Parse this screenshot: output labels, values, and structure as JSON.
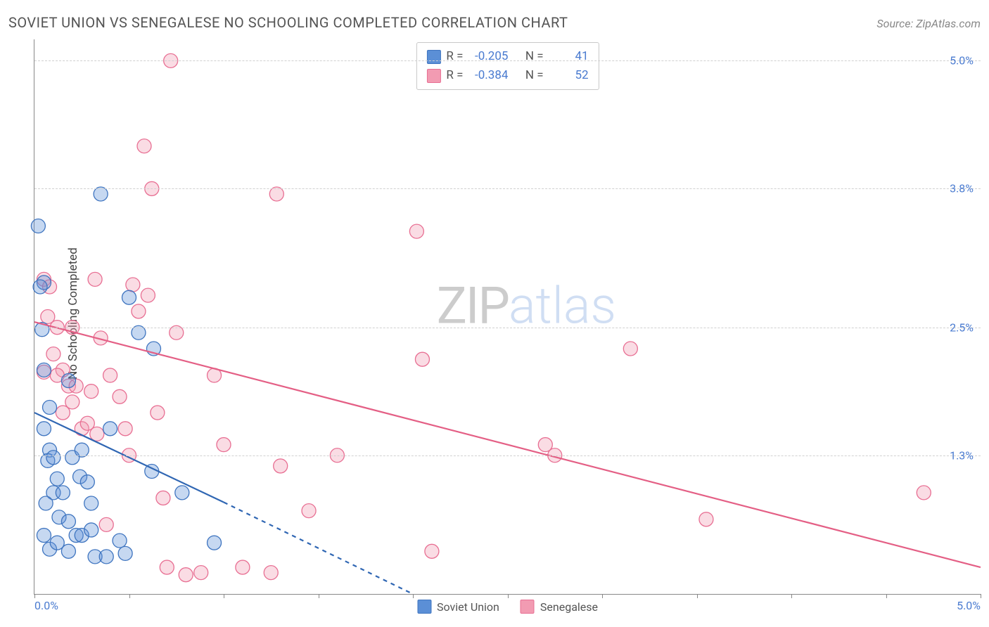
{
  "header": {
    "title": "SOVIET UNION VS SENEGALESE NO SCHOOLING COMPLETED CORRELATION CHART",
    "source": "Source: ZipAtlas.com"
  },
  "watermark": {
    "part1": "ZIP",
    "part2": "atlas"
  },
  "chart": {
    "type": "scatter",
    "y_label": "No Schooling Completed",
    "background_color": "#ffffff",
    "grid_color": "#d0d0d0",
    "axis_color": "#888888",
    "tick_label_color": "#4a7bd0",
    "xlim": [
      0.0,
      5.0
    ],
    "ylim": [
      0.0,
      5.2
    ],
    "x_ticks": [
      0.0,
      0.5,
      1.0,
      1.5,
      2.0,
      2.5,
      3.0,
      3.5,
      4.0,
      4.5,
      5.0
    ],
    "x_axis_labels": {
      "min": "0.0%",
      "max": "5.0%"
    },
    "y_ticks": [
      {
        "v": 1.3,
        "label": "1.3%"
      },
      {
        "v": 2.5,
        "label": "2.5%"
      },
      {
        "v": 3.8,
        "label": "3.8%"
      },
      {
        "v": 5.0,
        "label": "5.0%"
      }
    ],
    "point_radius": 10,
    "point_fill_opacity": 0.35,
    "point_stroke_width": 1.3,
    "trend_line_width": 2.2,
    "series": [
      {
        "name": "Soviet Union",
        "color": "#5b8fd6",
        "stroke": "#3f75c0",
        "trend_color": "#2f66b3",
        "R": "-0.205",
        "N": "41",
        "trend": {
          "x1": 0.0,
          "y1": 1.7,
          "x2": 1.0,
          "y2": 0.86
        },
        "trend_ext": {
          "x1": 1.0,
          "y1": 0.86,
          "x2": 2.0,
          "y2": 0.0
        },
        "points": [
          [
            0.02,
            3.45
          ],
          [
            0.05,
            2.92
          ],
          [
            0.03,
            2.88
          ],
          [
            0.04,
            2.48
          ],
          [
            0.05,
            2.1
          ],
          [
            0.08,
            1.35
          ],
          [
            0.07,
            1.25
          ],
          [
            0.1,
            1.28
          ],
          [
            0.12,
            1.08
          ],
          [
            0.1,
            0.95
          ],
          [
            0.06,
            0.85
          ],
          [
            0.15,
            0.95
          ],
          [
            0.13,
            0.72
          ],
          [
            0.18,
            0.68
          ],
          [
            0.22,
            0.55
          ],
          [
            0.05,
            0.55
          ],
          [
            0.08,
            0.42
          ],
          [
            0.12,
            0.48
          ],
          [
            0.18,
            0.4
          ],
          [
            0.25,
            0.55
          ],
          [
            0.3,
            0.6
          ],
          [
            0.24,
            1.1
          ],
          [
            0.2,
            1.28
          ],
          [
            0.28,
            1.05
          ],
          [
            0.25,
            1.35
          ],
          [
            0.32,
            0.35
          ],
          [
            0.38,
            0.35
          ],
          [
            0.4,
            1.55
          ],
          [
            0.45,
            0.5
          ],
          [
            0.48,
            0.38
          ],
          [
            0.5,
            2.78
          ],
          [
            0.55,
            2.45
          ],
          [
            0.63,
            2.3
          ],
          [
            0.62,
            1.15
          ],
          [
            0.95,
            0.48
          ],
          [
            0.35,
            3.75
          ],
          [
            0.18,
            2.0
          ],
          [
            0.08,
            1.75
          ],
          [
            0.05,
            1.55
          ],
          [
            0.3,
            0.85
          ],
          [
            0.78,
            0.95
          ]
        ]
      },
      {
        "name": "Senegalese",
        "color": "#f29bb2",
        "stroke": "#e86f93",
        "trend_color": "#e45f85",
        "R": "-0.384",
        "N": "52",
        "trend": {
          "x1": 0.0,
          "y1": 2.55,
          "x2": 5.0,
          "y2": 0.25
        },
        "points": [
          [
            0.05,
            2.95
          ],
          [
            0.08,
            2.88
          ],
          [
            0.07,
            2.6
          ],
          [
            0.12,
            2.5
          ],
          [
            0.1,
            2.25
          ],
          [
            0.15,
            2.1
          ],
          [
            0.12,
            2.05
          ],
          [
            0.18,
            1.95
          ],
          [
            0.2,
            1.8
          ],
          [
            0.22,
            1.95
          ],
          [
            0.15,
            1.7
          ],
          [
            0.25,
            1.55
          ],
          [
            0.28,
            1.6
          ],
          [
            0.3,
            1.9
          ],
          [
            0.33,
            1.5
          ],
          [
            0.35,
            2.4
          ],
          [
            0.4,
            2.05
          ],
          [
            0.45,
            1.85
          ],
          [
            0.48,
            1.55
          ],
          [
            0.5,
            1.3
          ],
          [
            0.55,
            2.65
          ],
          [
            0.6,
            2.8
          ],
          [
            0.58,
            4.2
          ],
          [
            0.72,
            5.0
          ],
          [
            0.62,
            3.8
          ],
          [
            0.65,
            1.7
          ],
          [
            0.68,
            0.9
          ],
          [
            0.7,
            0.25
          ],
          [
            0.75,
            2.45
          ],
          [
            0.88,
            0.2
          ],
          [
            0.95,
            2.05
          ],
          [
            1.0,
            1.4
          ],
          [
            1.1,
            0.25
          ],
          [
            1.25,
            0.2
          ],
          [
            1.28,
            3.75
          ],
          [
            1.3,
            1.2
          ],
          [
            1.45,
            0.78
          ],
          [
            1.6,
            1.3
          ],
          [
            2.02,
            3.4
          ],
          [
            2.05,
            2.2
          ],
          [
            2.1,
            0.4
          ],
          [
            2.7,
            1.4
          ],
          [
            2.75,
            1.3
          ],
          [
            3.15,
            2.3
          ],
          [
            3.55,
            0.7
          ],
          [
            4.7,
            0.95
          ],
          [
            0.32,
            2.95
          ],
          [
            0.05,
            2.08
          ],
          [
            0.38,
            0.65
          ],
          [
            0.2,
            2.5
          ],
          [
            0.52,
            2.9
          ],
          [
            0.8,
            0.18
          ]
        ]
      }
    ],
    "legend_labels": {
      "s1": "Soviet Union",
      "s2": "Senegalese"
    },
    "stats_labels": {
      "R": "R =",
      "N": "N ="
    }
  }
}
